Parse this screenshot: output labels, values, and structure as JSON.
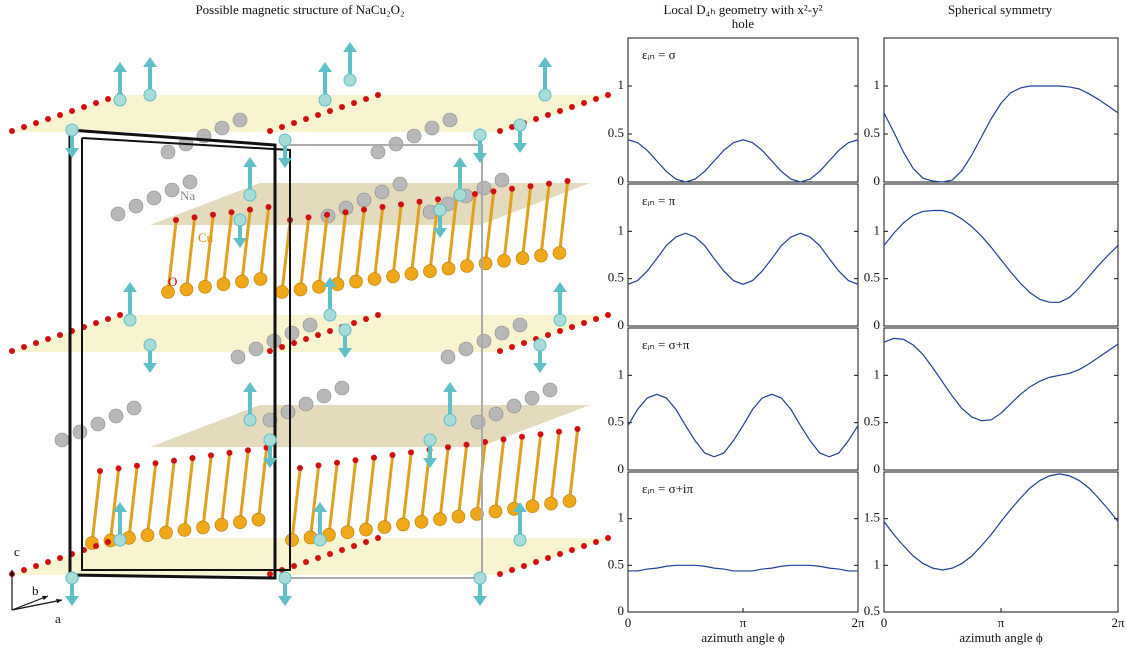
{
  "figure_title": "Possible magnetic structure of NaCu₂O₂",
  "structure": {
    "labels": {
      "na": "Na",
      "cu": "Cu",
      "o": "O"
    },
    "axes": {
      "a": "a",
      "b": "b",
      "c": "c"
    }
  },
  "chart_data": [
    {
      "type": "line",
      "title": "Local D₄ₕ geometry with x²-y² hole",
      "annotation": "εᵢₙ = σ",
      "xlim": [
        0,
        6.283
      ],
      "ylim": [
        0,
        1.5
      ],
      "yticks": [
        0,
        0.5,
        1
      ],
      "x": [
        0,
        0.262,
        0.524,
        0.785,
        1.047,
        1.309,
        1.571,
        1.833,
        2.094,
        2.356,
        2.618,
        2.88,
        3.142,
        3.403,
        3.665,
        3.927,
        4.189,
        4.451,
        4.712,
        4.974,
        5.236,
        5.498,
        5.76,
        6.021,
        6.283
      ],
      "series": [
        {
          "color": "#1f3f99",
          "values": [
            0.44,
            0.41,
            0.33,
            0.22,
            0.11,
            0.03,
            0,
            0.03,
            0.11,
            0.22,
            0.33,
            0.41,
            0.44,
            0.41,
            0.33,
            0.22,
            0.11,
            0.03,
            0,
            0.03,
            0.11,
            0.22,
            0.33,
            0.41,
            0.44
          ]
        }
      ]
    },
    {
      "type": "line",
      "annotation": "εᵢₙ = π",
      "xlim": [
        0,
        6.283
      ],
      "ylim": [
        0,
        1.5
      ],
      "yticks": [
        0,
        0.5,
        1
      ],
      "x": [
        0,
        0.262,
        0.524,
        0.785,
        1.047,
        1.309,
        1.571,
        1.833,
        2.094,
        2.356,
        2.618,
        2.88,
        3.142,
        3.403,
        3.665,
        3.927,
        4.189,
        4.451,
        4.712,
        4.974,
        5.236,
        5.498,
        5.76,
        6.021,
        6.283
      ],
      "series": [
        {
          "color": "#1f3f99",
          "values": [
            0.44,
            0.48,
            0.58,
            0.71,
            0.85,
            0.94,
            0.98,
            0.94,
            0.85,
            0.71,
            0.58,
            0.48,
            0.44,
            0.48,
            0.58,
            0.71,
            0.85,
            0.94,
            0.98,
            0.94,
            0.85,
            0.71,
            0.58,
            0.48,
            0.44
          ]
        }
      ]
    },
    {
      "type": "line",
      "annotation": "εᵢₙ = σ+π",
      "xlim": [
        0,
        6.283
      ],
      "ylim": [
        0,
        1.5
      ],
      "yticks": [
        0,
        0.5,
        1
      ],
      "x": [
        0,
        0.262,
        0.524,
        0.785,
        1.047,
        1.309,
        1.571,
        1.833,
        2.094,
        2.356,
        2.618,
        2.88,
        3.142,
        3.403,
        3.665,
        3.927,
        4.189,
        4.451,
        4.712,
        4.974,
        5.236,
        5.498,
        5.76,
        6.021,
        6.283
      ],
      "series": [
        {
          "color": "#1f3f99",
          "values": [
            0.47,
            0.64,
            0.76,
            0.8,
            0.76,
            0.64,
            0.47,
            0.31,
            0.18,
            0.14,
            0.18,
            0.31,
            0.47,
            0.64,
            0.76,
            0.8,
            0.76,
            0.64,
            0.47,
            0.31,
            0.18,
            0.14,
            0.18,
            0.31,
            0.47
          ]
        }
      ]
    },
    {
      "type": "line",
      "annotation": "εᵢₙ = σ+iπ",
      "xlim": [
        0,
        6.283
      ],
      "ylim": [
        0,
        1.5
      ],
      "yticks": [
        0,
        0.5,
        1
      ],
      "xticks": [
        0,
        {
          "value": 3.142,
          "label": "π"
        },
        {
          "value": 6.283,
          "label": "2π"
        }
      ],
      "xlabel": "azimuth angle ϕ",
      "x": [
        0,
        0.262,
        0.524,
        0.785,
        1.047,
        1.309,
        1.571,
        1.833,
        2.094,
        2.356,
        2.618,
        2.88,
        3.142,
        3.403,
        3.665,
        3.927,
        4.189,
        4.451,
        4.712,
        4.974,
        5.236,
        5.498,
        5.76,
        6.021,
        6.283
      ],
      "series": [
        {
          "color": "#1f3f99",
          "values": [
            0.44,
            0.44,
            0.46,
            0.47,
            0.49,
            0.5,
            0.5,
            0.5,
            0.49,
            0.47,
            0.46,
            0.44,
            0.44,
            0.44,
            0.46,
            0.47,
            0.49,
            0.5,
            0.5,
            0.5,
            0.49,
            0.47,
            0.46,
            0.44,
            0.44
          ]
        }
      ]
    },
    {
      "type": "line",
      "title": "Spherical symmetry",
      "xlim": [
        0,
        6.283
      ],
      "ylim": [
        0,
        1.5
      ],
      "yticks": [
        0,
        0.5,
        1
      ],
      "x": [
        0,
        0.262,
        0.524,
        0.785,
        1.047,
        1.309,
        1.571,
        1.833,
        2.094,
        2.356,
        2.618,
        2.88,
        3.142,
        3.403,
        3.665,
        3.927,
        4.189,
        4.451,
        4.712,
        4.974,
        5.236,
        5.498,
        5.76,
        6.021,
        6.283
      ],
      "series": [
        {
          "color": "#1f3f99",
          "values": [
            0.72,
            0.52,
            0.31,
            0.14,
            0.04,
            0.01,
            0,
            0.02,
            0.12,
            0.28,
            0.47,
            0.66,
            0.82,
            0.93,
            0.98,
            1.0,
            1.0,
            1.0,
            1.0,
            0.99,
            0.97,
            0.92,
            0.86,
            0.79,
            0.72
          ]
        }
      ]
    },
    {
      "type": "line",
      "xlim": [
        0,
        6.283
      ],
      "ylim": [
        0,
        1.5
      ],
      "yticks": [
        0,
        0.5,
        1
      ],
      "x": [
        0,
        0.262,
        0.524,
        0.785,
        1.047,
        1.309,
        1.571,
        1.833,
        2.094,
        2.356,
        2.618,
        2.88,
        3.142,
        3.403,
        3.665,
        3.927,
        4.189,
        4.451,
        4.712,
        4.974,
        5.236,
        5.498,
        5.76,
        6.021,
        6.283
      ],
      "series": [
        {
          "color": "#1f3f99",
          "values": [
            0.85,
            0.98,
            1.09,
            1.17,
            1.21,
            1.22,
            1.22,
            1.19,
            1.13,
            1.05,
            0.95,
            0.83,
            0.7,
            0.57,
            0.45,
            0.35,
            0.28,
            0.25,
            0.25,
            0.3,
            0.4,
            0.52,
            0.64,
            0.75,
            0.85
          ]
        }
      ]
    },
    {
      "type": "line",
      "xlim": [
        0,
        6.283
      ],
      "ylim": [
        0,
        1.5
      ],
      "yticks": [
        0,
        0.5,
        1
      ],
      "x": [
        0,
        0.262,
        0.524,
        0.785,
        1.047,
        1.309,
        1.571,
        1.833,
        2.094,
        2.356,
        2.618,
        2.88,
        3.142,
        3.403,
        3.665,
        3.927,
        4.189,
        4.451,
        4.712,
        4.974,
        5.236,
        5.498,
        5.76,
        6.021,
        6.283
      ],
      "series": [
        {
          "color": "#1f3f99",
          "values": [
            1.35,
            1.39,
            1.38,
            1.32,
            1.22,
            1.08,
            0.93,
            0.78,
            0.65,
            0.56,
            0.52,
            0.53,
            0.6,
            0.7,
            0.8,
            0.88,
            0.94,
            0.98,
            1.0,
            1.02,
            1.06,
            1.12,
            1.19,
            1.26,
            1.33
          ]
        }
      ]
    },
    {
      "type": "line",
      "xlim": [
        0,
        6.283
      ],
      "ylim": [
        0.5,
        2
      ],
      "yticks": [
        0.5,
        1,
        1.5
      ],
      "xticks": [
        0,
        {
          "value": 3.142,
          "label": "π"
        },
        {
          "value": 6.283,
          "label": "2π"
        }
      ],
      "xlabel": "azimuth angle ϕ",
      "x": [
        0,
        0.262,
        0.524,
        0.785,
        1.047,
        1.309,
        1.571,
        1.833,
        2.094,
        2.356,
        2.618,
        2.88,
        3.142,
        3.403,
        3.665,
        3.927,
        4.189,
        4.451,
        4.712,
        4.974,
        5.236,
        5.498,
        5.76,
        6.021,
        6.283
      ],
      "series": [
        {
          "color": "#1f3f99",
          "values": [
            1.47,
            1.33,
            1.21,
            1.1,
            1.02,
            0.97,
            0.95,
            0.97,
            1.02,
            1.1,
            1.21,
            1.33,
            1.47,
            1.6,
            1.72,
            1.83,
            1.91,
            1.96,
            1.98,
            1.96,
            1.91,
            1.83,
            1.72,
            1.6,
            1.47
          ]
        }
      ]
    }
  ]
}
